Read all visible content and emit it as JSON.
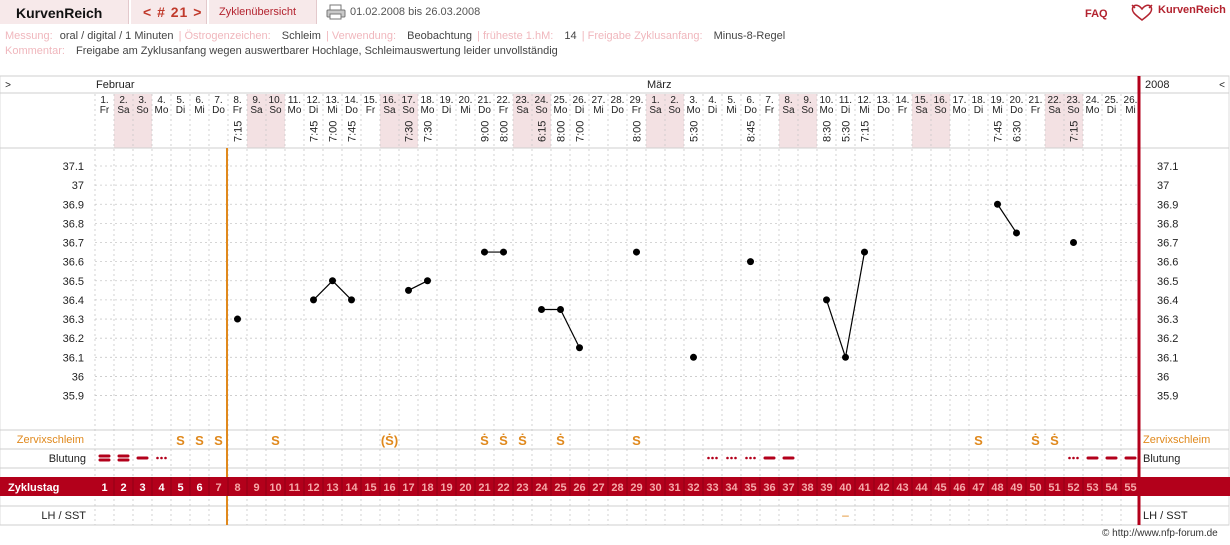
{
  "header": {
    "brand": "KurvenReich",
    "cycle_label": "< # 21 >",
    "overview_label": "Zyklenübersicht",
    "date_range": "01.02.2008 bis 26.03.2008",
    "faq_label": "FAQ",
    "logo_label": "KurvenReich",
    "print_icon": "printer-icon",
    "logo_icon": "heart-logo-icon"
  },
  "meta": {
    "messung_label": "Messung:",
    "messung_value": "oral / digital / 1 Minuten",
    "oestrogen_label": "Östrogenzeichen:",
    "oestrogen_value": "Schleim",
    "verwendung_label": "Verwendung:",
    "verwendung_value": "Beobachtung",
    "fruehest_label": "früheste 1.hM:",
    "fruehest_value": "14",
    "freigabe_label": "Freigabe Zyklusanfang:",
    "freigabe_value": "Minus-8-Regel",
    "kommentar_label": "Kommentar:",
    "kommentar_value": "Freigabe am Zyklusanfang wegen auswertbarer Hochlage, Schleimauswertung leider unvollständig"
  },
  "copyright": "© http://www.nfp-forum.de",
  "colors": {
    "accent_red": "#b3001b",
    "weekend_bg": "#f3e1e3",
    "marker_orange": "#e0891d",
    "grid": "#c8c8c8",
    "point": "#000000"
  },
  "chart_data": {
    "type": "line",
    "nav_left": ">",
    "nav_right": "<",
    "year_label": "2008",
    "months": [
      {
        "label": "Februar",
        "start_index": 0
      },
      {
        "label": "März",
        "start_index": 29
      }
    ],
    "days": [
      {
        "date": "1.",
        "wd": "Fr",
        "we": false,
        "time": ""
      },
      {
        "date": "2.",
        "wd": "Sa",
        "we": true,
        "time": ""
      },
      {
        "date": "3.",
        "wd": "So",
        "we": true,
        "time": ""
      },
      {
        "date": "4.",
        "wd": "Mo",
        "we": false,
        "time": ""
      },
      {
        "date": "5.",
        "wd": "Di",
        "we": false,
        "time": ""
      },
      {
        "date": "6.",
        "wd": "Mi",
        "we": false,
        "time": ""
      },
      {
        "date": "7.",
        "wd": "Do",
        "we": false,
        "time": ""
      },
      {
        "date": "8.",
        "wd": "Fr",
        "we": false,
        "time": "7:15"
      },
      {
        "date": "9.",
        "wd": "Sa",
        "we": true,
        "time": ""
      },
      {
        "date": "10.",
        "wd": "So",
        "we": true,
        "time": ""
      },
      {
        "date": "11.",
        "wd": "Mo",
        "we": false,
        "time": ""
      },
      {
        "date": "12.",
        "wd": "Di",
        "we": false,
        "time": "7:45"
      },
      {
        "date": "13.",
        "wd": "Mi",
        "we": false,
        "time": "7:00"
      },
      {
        "date": "14.",
        "wd": "Do",
        "we": false,
        "time": "7:45"
      },
      {
        "date": "15.",
        "wd": "Fr",
        "we": false,
        "time": ""
      },
      {
        "date": "16.",
        "wd": "Sa",
        "we": true,
        "time": ""
      },
      {
        "date": "17.",
        "wd": "So",
        "we": true,
        "time": "7:30"
      },
      {
        "date": "18.",
        "wd": "Mo",
        "we": false,
        "time": "7:30"
      },
      {
        "date": "19.",
        "wd": "Di",
        "we": false,
        "time": ""
      },
      {
        "date": "20.",
        "wd": "Mi",
        "we": false,
        "time": ""
      },
      {
        "date": "21.",
        "wd": "Do",
        "we": false,
        "time": "9:00"
      },
      {
        "date": "22.",
        "wd": "Fr",
        "we": false,
        "time": "8:00"
      },
      {
        "date": "23.",
        "wd": "Sa",
        "we": true,
        "time": ""
      },
      {
        "date": "24.",
        "wd": "So",
        "we": true,
        "time": "6:15"
      },
      {
        "date": "25.",
        "wd": "Mo",
        "we": false,
        "time": "8:00"
      },
      {
        "date": "26.",
        "wd": "Di",
        "we": false,
        "time": "7:00"
      },
      {
        "date": "27.",
        "wd": "Mi",
        "we": false,
        "time": ""
      },
      {
        "date": "28.",
        "wd": "Do",
        "we": false,
        "time": ""
      },
      {
        "date": "29.",
        "wd": "Fr",
        "we": false,
        "time": "8:00"
      },
      {
        "date": "1.",
        "wd": "Sa",
        "we": true,
        "time": ""
      },
      {
        "date": "2.",
        "wd": "So",
        "we": true,
        "time": ""
      },
      {
        "date": "3.",
        "wd": "Mo",
        "we": false,
        "time": "5:30"
      },
      {
        "date": "4.",
        "wd": "Di",
        "we": false,
        "time": ""
      },
      {
        "date": "5.",
        "wd": "Mi",
        "we": false,
        "time": ""
      },
      {
        "date": "6.",
        "wd": "Do",
        "we": false,
        "time": "8:45"
      },
      {
        "date": "7.",
        "wd": "Fr",
        "we": false,
        "time": ""
      },
      {
        "date": "8.",
        "wd": "Sa",
        "we": true,
        "time": ""
      },
      {
        "date": "9.",
        "wd": "So",
        "we": true,
        "time": ""
      },
      {
        "date": "10.",
        "wd": "Mo",
        "we": false,
        "time": "8:30"
      },
      {
        "date": "11.",
        "wd": "Di",
        "we": false,
        "time": "5:30"
      },
      {
        "date": "12.",
        "wd": "Mi",
        "we": false,
        "time": "7:15"
      },
      {
        "date": "13.",
        "wd": "Do",
        "we": false,
        "time": ""
      },
      {
        "date": "14.",
        "wd": "Fr",
        "we": false,
        "time": ""
      },
      {
        "date": "15.",
        "wd": "Sa",
        "we": true,
        "time": ""
      },
      {
        "date": "16.",
        "wd": "So",
        "we": true,
        "time": ""
      },
      {
        "date": "17.",
        "wd": "Mo",
        "we": false,
        "time": ""
      },
      {
        "date": "18.",
        "wd": "Di",
        "we": false,
        "time": ""
      },
      {
        "date": "19.",
        "wd": "Mi",
        "we": false,
        "time": "7:45"
      },
      {
        "date": "20.",
        "wd": "Do",
        "we": false,
        "time": "6:30"
      },
      {
        "date": "21.",
        "wd": "Fr",
        "we": false,
        "time": ""
      },
      {
        "date": "22.",
        "wd": "Sa",
        "we": true,
        "time": ""
      },
      {
        "date": "23.",
        "wd": "So",
        "we": true,
        "time": "7:15"
      },
      {
        "date": "24.",
        "wd": "Mo",
        "we": false,
        "time": ""
      },
      {
        "date": "25.",
        "wd": "Di",
        "we": false,
        "time": ""
      },
      {
        "date": "26.",
        "wd": "Mi",
        "we": false,
        "time": ""
      }
    ],
    "y_ticks": [
      "37.1",
      "37",
      "36.9",
      "36.8",
      "36.7",
      "36.6",
      "36.5",
      "36.4",
      "36.3",
      "36.2",
      "36.1",
      "36",
      "35.9"
    ],
    "ylim": [
      35.9,
      37.1
    ],
    "temperatures": [
      {
        "day": 8,
        "value": 36.3
      },
      {
        "day": 12,
        "value": 36.4
      },
      {
        "day": 13,
        "value": 36.5
      },
      {
        "day": 14,
        "value": 36.4
      },
      {
        "day": 17,
        "value": 36.45
      },
      {
        "day": 18,
        "value": 36.5
      },
      {
        "day": 21,
        "value": 36.65
      },
      {
        "day": 22,
        "value": 36.65
      },
      {
        "day": 24,
        "value": 36.35
      },
      {
        "day": 25,
        "value": 36.35
      },
      {
        "day": 26,
        "value": 36.15
      },
      {
        "day": 29,
        "value": 36.65
      },
      {
        "day": 32,
        "value": 36.1
      },
      {
        "day": 35,
        "value": 36.6
      },
      {
        "day": 39,
        "value": 36.4
      },
      {
        "day": 40,
        "value": 36.1
      },
      {
        "day": 41,
        "value": 36.65
      },
      {
        "day": 48,
        "value": 36.9
      },
      {
        "day": 49,
        "value": 36.75
      },
      {
        "day": 52,
        "value": 36.7
      }
    ],
    "line_segments": [
      [
        12,
        13
      ],
      [
        13,
        14
      ],
      [
        17,
        18
      ],
      [
        21,
        22
      ],
      [
        24,
        25
      ],
      [
        25,
        26
      ],
      [
        39,
        40
      ],
      [
        40,
        41
      ],
      [
        48,
        49
      ]
    ],
    "zervixschleim_label": "Zervixschleim",
    "zervixschleim": [
      {
        "day": 5,
        "sym": "S"
      },
      {
        "day": 6,
        "sym": "S"
      },
      {
        "day": 7,
        "sym": "S"
      },
      {
        "day": 10,
        "sym": "S"
      },
      {
        "day": 16,
        "sym": "(Ṡ)"
      },
      {
        "day": 21,
        "sym": "Ṡ"
      },
      {
        "day": 22,
        "sym": "Ṡ"
      },
      {
        "day": 23,
        "sym": "Ṡ"
      },
      {
        "day": 25,
        "sym": "Ṡ"
      },
      {
        "day": 29,
        "sym": "S"
      },
      {
        "day": 47,
        "sym": "S"
      },
      {
        "day": 50,
        "sym": "Ṡ"
      },
      {
        "day": 51,
        "sym": "Ṡ"
      }
    ],
    "blutung_label": "Blutung",
    "blutung": [
      {
        "day": 1,
        "level": "heavy"
      },
      {
        "day": 2,
        "level": "heavy"
      },
      {
        "day": 3,
        "level": "medium"
      },
      {
        "day": 4,
        "level": "spot"
      },
      {
        "day": 33,
        "level": "spot"
      },
      {
        "day": 34,
        "level": "spot"
      },
      {
        "day": 35,
        "level": "spot"
      },
      {
        "day": 36,
        "level": "medium"
      },
      {
        "day": 37,
        "level": "medium"
      },
      {
        "day": 52,
        "level": "spot"
      },
      {
        "day": 53,
        "level": "medium"
      },
      {
        "day": 54,
        "level": "medium"
      },
      {
        "day": 55,
        "level": "medium"
      }
    ],
    "zyklustag_label": "Zyklustag",
    "cycle_days": [
      "1",
      "2",
      "3",
      "4",
      "5",
      "6",
      "7",
      "8",
      "9",
      "10",
      "11",
      "12",
      "13",
      "14",
      "15",
      "16",
      "17",
      "18",
      "19",
      "20",
      "21",
      "22",
      "23",
      "24",
      "25",
      "26",
      "27",
      "28",
      "29",
      "30",
      "31",
      "32",
      "33",
      "34",
      "35",
      "36",
      "37",
      "38",
      "39",
      "40",
      "41",
      "42",
      "43",
      "44",
      "45",
      "46",
      "47",
      "48",
      "49",
      "50",
      "51",
      "52",
      "53",
      "54",
      "55"
    ],
    "lh_label": "LH / SST",
    "lh": [
      {
        "day": 40,
        "sym": "–"
      }
    ],
    "release_after_day": 6
  }
}
